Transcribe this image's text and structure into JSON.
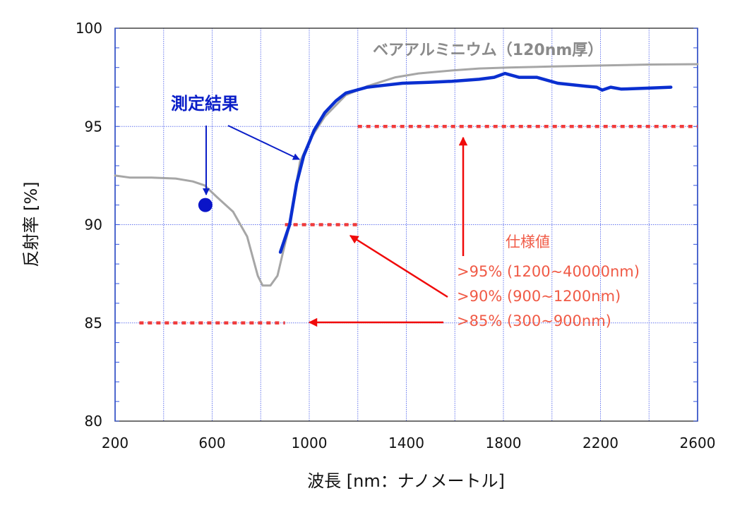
{
  "chart_data": {
    "type": "line",
    "title": "",
    "xlabel": "波長 [nm：ナノメートル]",
    "ylabel": "反射率 [%]",
    "xlim": [
      200,
      2600
    ],
    "ylim": [
      80,
      100
    ],
    "xticks": [
      200,
      600,
      1000,
      1400,
      1800,
      2200,
      2600
    ],
    "yticks": [
      80,
      85,
      90,
      95,
      100
    ],
    "x_grid_step": 200,
    "y_minor_step": 1,
    "grid": true,
    "series": [
      {
        "name": "ベアアルミニウム（120nm厚）",
        "color": "#a6a6a6",
        "x": [
          200,
          260,
          350,
          450,
          520,
          569,
          620,
          686,
          744,
          788,
          808,
          840,
          869,
          890,
          919,
          962,
          1006,
          1064,
          1151,
          1239,
          1355,
          1450,
          1588,
          1700,
          1820,
          2000,
          2199,
          2400,
          2600
        ],
        "y": [
          92.5,
          92.4,
          92.4,
          92.35,
          92.2,
          92.0,
          91.4,
          90.66,
          89.4,
          87.4,
          86.9,
          86.9,
          87.4,
          88.5,
          90.0,
          93.2,
          94.4,
          95.5,
          96.6,
          97.05,
          97.5,
          97.7,
          97.85,
          97.95,
          98.0,
          98.05,
          98.1,
          98.15,
          98.17
        ]
      },
      {
        "name": "測定結果",
        "color": "#0a2fd0",
        "x": [
          881,
          919,
          948,
          977,
          1020,
          1064,
          1110,
          1151,
          1239,
          1311,
          1384,
          1500,
          1588,
          1700,
          1762,
          1806,
          1864,
          1937,
          2024,
          2140,
          2184,
          2207,
          2242,
          2286,
          2400,
          2490
        ],
        "y": [
          88.6,
          90.0,
          92.1,
          93.5,
          94.8,
          95.7,
          96.3,
          96.7,
          97.0,
          97.1,
          97.2,
          97.25,
          97.3,
          97.4,
          97.5,
          97.7,
          97.5,
          97.5,
          97.2,
          97.05,
          97.0,
          96.85,
          97.0,
          96.9,
          96.95,
          97.0
        ]
      }
    ],
    "points": [
      {
        "name": "測定結果",
        "x": 572,
        "y": 91.0,
        "color": "#0a14c8"
      }
    ],
    "spec_lines": [
      {
        "value": 95,
        "x_from": 1200,
        "x_to": 2600,
        "color": "#f03c3c"
      },
      {
        "value": 90,
        "x_from": 900,
        "x_to": 1200,
        "color": "#f03c3c"
      },
      {
        "value": 85,
        "x_from": 300,
        "x_to": 900,
        "color": "#f03c3c"
      }
    ],
    "annotations": {
      "bare_al": "ベアアルミニウム（120nm厚）",
      "measured": "測定結果",
      "spec_title": "仕様値",
      "spec_95": ">95% (1200~40000nm)",
      "spec_90": ">90% (900~1200nm)",
      "spec_85": ">85% (300~900nm)"
    }
  }
}
